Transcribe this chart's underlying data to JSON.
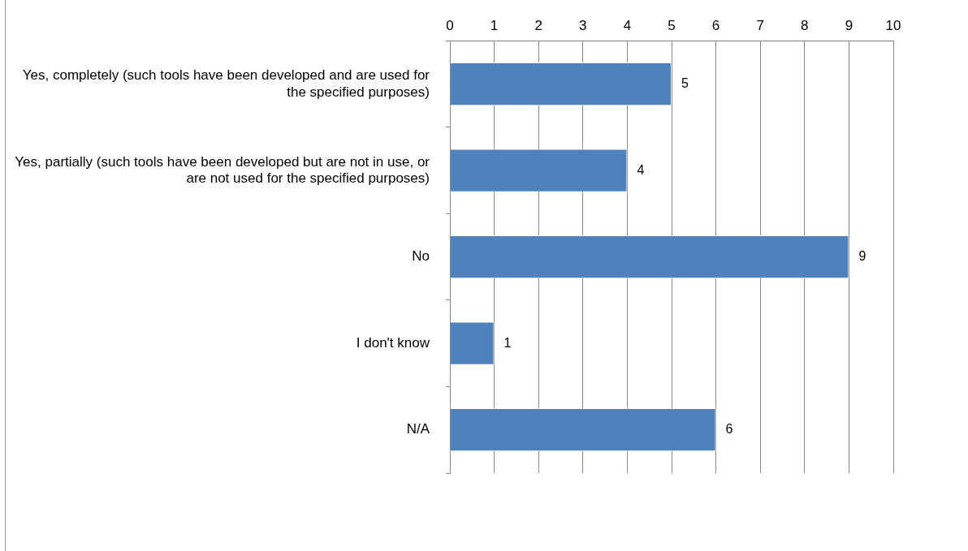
{
  "chart_data": {
    "type": "bar",
    "orientation": "horizontal",
    "categories": [
      "Yes, completely (such tools have been developed and are used for the specified purposes)",
      "Yes, partially (such tools have been developed but are not in use, or are not used for the specified purposes)",
      "No",
      "I don't know",
      "N/A"
    ],
    "values": [
      5,
      4,
      9,
      1,
      6
    ],
    "color": "#4f81bd",
    "xlim": [
      0,
      10
    ],
    "xticks": [
      0,
      1,
      2,
      3,
      4,
      5,
      6,
      7,
      8,
      9,
      10
    ],
    "grid": "x",
    "data_labels": true,
    "legend": false
  }
}
